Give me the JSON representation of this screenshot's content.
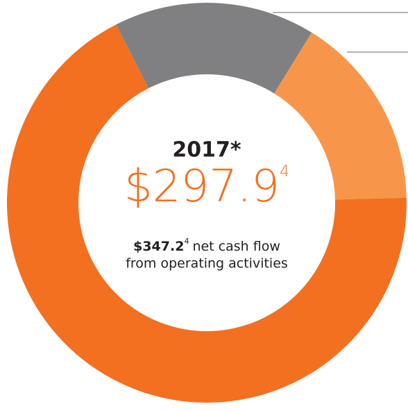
{
  "chart_data": {
    "type": "donut",
    "values": [
      16.3,
      15.8,
      67.9
    ],
    "colors": [
      "#808083",
      "#f7964a",
      "#f37021"
    ],
    "center": {
      "year": "2017*",
      "main_value": "$297.9",
      "main_note": "4",
      "sub_value": "$347.2",
      "sub_note": "4",
      "sub_text": [
        "net cash flow",
        "from operating activities"
      ]
    }
  }
}
